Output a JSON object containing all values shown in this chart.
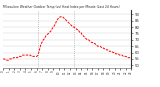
{
  "title": "Milwaukee Weather Outdoor Temp (vs) Heat Index per Minute (Last 24 Hours)",
  "line_color": "#ff0000",
  "background_color": "#ffffff",
  "grid_color": "#cccccc",
  "vline_color": "#888888",
  "ylim": [
    48,
    93
  ],
  "yticks": [
    50,
    55,
    60,
    65,
    70,
    75,
    80,
    85,
    90
  ],
  "vline_positions": [
    0.27,
    0.55
  ],
  "n_points": 100,
  "curve_y": [
    55,
    55,
    54,
    54,
    54,
    55,
    55,
    55,
    56,
    56,
    56,
    56,
    57,
    57,
    57,
    58,
    58,
    58,
    58,
    58,
    58,
    58,
    57,
    57,
    57,
    57,
    57,
    58,
    62,
    66,
    68,
    70,
    71,
    73,
    74,
    75,
    76,
    77,
    79,
    80,
    82,
    84,
    86,
    87,
    88,
    88,
    88,
    87,
    86,
    85,
    84,
    83,
    82,
    81,
    80,
    80,
    79,
    78,
    78,
    76,
    76,
    74,
    73,
    72,
    71,
    70,
    70,
    69,
    68,
    68,
    67,
    67,
    66,
    65,
    65,
    65,
    64,
    64,
    63,
    63,
    62,
    62,
    61,
    61,
    61,
    60,
    60,
    59,
    59,
    59,
    58,
    58,
    58,
    57,
    57,
    57,
    56,
    56,
    56,
    56
  ]
}
